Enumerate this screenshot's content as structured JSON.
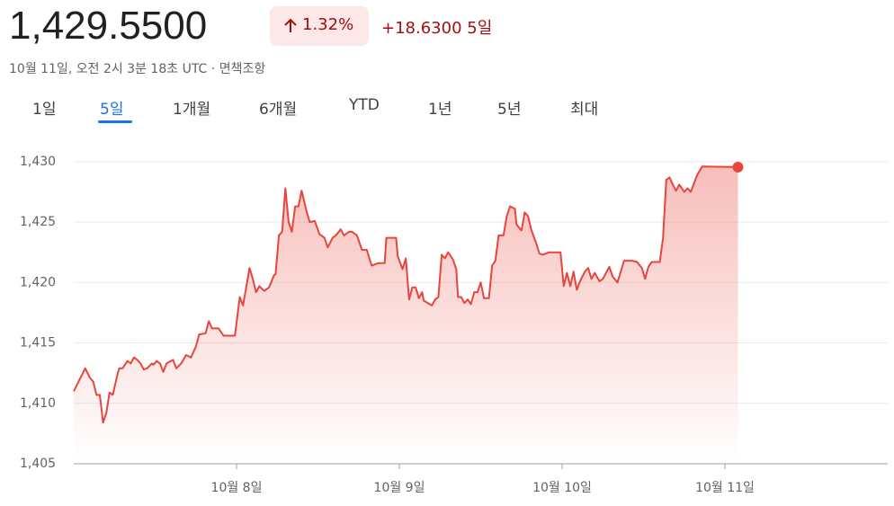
{
  "header": {
    "price": "1,429.5500",
    "change_percent": "1.32%",
    "change": "+18.6300",
    "period": "5일",
    "timestamp": "10월 11일, 오전 2시 3분 18초 UTC ·",
    "disclaimer": "면책조항"
  },
  "tabs": [
    "1일",
    "5일",
    "1개월",
    "6개월",
    "YTD",
    "1년",
    "5년",
    "최대"
  ],
  "active_tab": 1,
  "chart_data": {
    "type": "line",
    "color": "#e8453c",
    "grid": true,
    "end_marker": true,
    "x": [
      7.0,
      7.03,
      7.07,
      7.1,
      7.12,
      7.14,
      7.16,
      7.18,
      7.2,
      7.22,
      7.24,
      7.27,
      7.28,
      7.3,
      7.33,
      7.35,
      7.37,
      7.39,
      7.41,
      7.43,
      7.45,
      7.48,
      7.49,
      7.51,
      7.53,
      7.55,
      7.57,
      7.61,
      7.63,
      7.66,
      7.69,
      7.72,
      7.75,
      7.77,
      7.81,
      7.83,
      7.85,
      7.89,
      7.92,
      7.99,
      8.02,
      8.04,
      8.08,
      8.1,
      8.12,
      8.14,
      8.17,
      8.2,
      8.23,
      8.24,
      8.26,
      8.28,
      8.3,
      8.32,
      8.34,
      8.36,
      8.38,
      8.4,
      8.43,
      8.45,
      8.48,
      8.51,
      8.54,
      8.56,
      8.59,
      8.61,
      8.64,
      8.66,
      8.69,
      8.71,
      8.74,
      8.77,
      8.8,
      8.83,
      8.87,
      8.91,
      8.92,
      8.98,
      8.99,
      9.02,
      9.04,
      9.06,
      9.08,
      9.1,
      9.12,
      9.14,
      9.15,
      9.2,
      9.22,
      9.24,
      9.26,
      9.28,
      9.3,
      9.33,
      9.35,
      9.36,
      9.38,
      9.4,
      9.42,
      9.44,
      9.46,
      9.48,
      9.5,
      9.52,
      9.55,
      9.57,
      9.59,
      9.61,
      9.64,
      9.66,
      9.68,
      9.71,
      9.72,
      9.75,
      9.77,
      9.79,
      9.81,
      9.84,
      9.86,
      9.88,
      9.92,
      9.99,
      10.01,
      10.03,
      10.05,
      10.07,
      10.09,
      10.11,
      10.14,
      10.16,
      10.18,
      10.2,
      10.23,
      10.25,
      10.29,
      10.31,
      10.34,
      10.36,
      10.38,
      10.43,
      10.46,
      10.49,
      10.51,
      10.53,
      10.55,
      10.6,
      10.62,
      10.64,
      10.66,
      10.68,
      10.7,
      10.72,
      10.75,
      10.77,
      10.79,
      10.83,
      10.86,
      11.08
    ],
    "values": [
      1411.0,
      1411.8,
      1412.9,
      1412.1,
      1411.8,
      1410.7,
      1410.7,
      1408.4,
      1409.2,
      1410.9,
      1410.7,
      1412.5,
      1412.9,
      1412.9,
      1413.5,
      1413.3,
      1413.8,
      1413.6,
      1413.3,
      1412.8,
      1412.9,
      1413.3,
      1413.2,
      1413.5,
      1413.3,
      1412.6,
      1413.3,
      1413.6,
      1412.9,
      1413.3,
      1414.0,
      1413.8,
      1414.7,
      1415.7,
      1415.8,
      1416.8,
      1416.2,
      1416.2,
      1415.6,
      1415.6,
      1418.8,
      1418.1,
      1421.2,
      1420.3,
      1419.2,
      1419.7,
      1419.3,
      1419.6,
      1420.6,
      1420.7,
      1423.9,
      1424.2,
      1427.8,
      1425.0,
      1424.2,
      1426.3,
      1426.3,
      1427.6,
      1425.9,
      1425.0,
      1425.1,
      1424.0,
      1423.7,
      1422.9,
      1423.7,
      1423.9,
      1424.4,
      1423.9,
      1424.2,
      1424.2,
      1423.9,
      1422.7,
      1422.7,
      1421.4,
      1421.6,
      1421.6,
      1423.7,
      1423.7,
      1422.2,
      1421.1,
      1422.0,
      1418.6,
      1419.6,
      1419.6,
      1418.7,
      1419.2,
      1418.5,
      1418.1,
      1418.6,
      1418.8,
      1422.3,
      1422.0,
      1422.5,
      1421.9,
      1421.1,
      1418.8,
      1418.8,
      1418.3,
      1418.6,
      1418.2,
      1419.2,
      1419.2,
      1420.0,
      1418.7,
      1418.7,
      1421.4,
      1421.8,
      1423.9,
      1423.9,
      1425.5,
      1426.3,
      1426.1,
      1424.8,
      1424.3,
      1425.8,
      1425.5,
      1424.4,
      1423.3,
      1422.4,
      1422.3,
      1422.5,
      1422.5,
      1419.7,
      1420.8,
      1419.7,
      1420.9,
      1419.4,
      1420.1,
      1420.9,
      1421.2,
      1420.3,
      1420.8,
      1420.1,
      1420.3,
      1421.3,
      1420.5,
      1420.0,
      1420.9,
      1421.8,
      1421.8,
      1421.7,
      1421.2,
      1420.3,
      1421.3,
      1421.7,
      1421.7,
      1423.7,
      1428.5,
      1428.7,
      1428.1,
      1427.6,
      1428.1,
      1427.5,
      1427.8,
      1427.5,
      1428.9,
      1429.6,
      1429.55
    ],
    "xlim": [
      7,
      12
    ],
    "xticks": [
      {
        "value": 8,
        "label": "10월 8일"
      },
      {
        "value": 9,
        "label": "10월 9일"
      },
      {
        "value": 10,
        "label": "10월 10일"
      },
      {
        "value": 11,
        "label": "10월 11일"
      }
    ],
    "ylim": [
      1405,
      1432
    ],
    "yticks": [
      {
        "value": 1405,
        "label": "1,405"
      },
      {
        "value": 1410,
        "label": "1,410"
      },
      {
        "value": 1415,
        "label": "1,415"
      },
      {
        "value": 1420,
        "label": "1,420"
      },
      {
        "value": 1425,
        "label": "1,425"
      },
      {
        "value": 1430,
        "label": "1,430"
      }
    ]
  }
}
